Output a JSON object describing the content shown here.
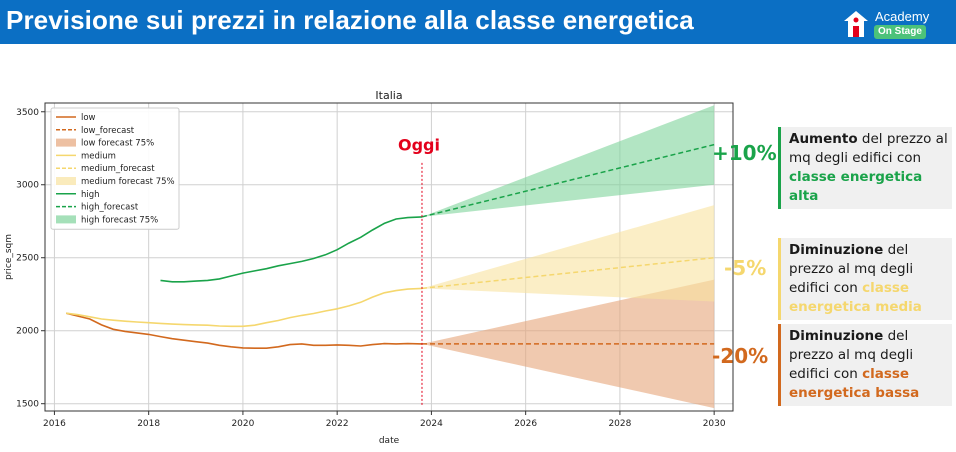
{
  "header": {
    "title": "Previsione sui prezzi in relazione alla classe energetica",
    "brand_name": "Academy",
    "brand_badge": "On Stage",
    "brand_color": "#0b6fc4"
  },
  "chart_data": {
    "type": "line",
    "title": "Italia",
    "xlabel": "date",
    "ylabel": "price_sqm",
    "xlim": [
      2015.8,
      2030.4
    ],
    "ylim": [
      1450,
      3560
    ],
    "x_ticks": [
      2016,
      2018,
      2020,
      2022,
      2024,
      2026,
      2028,
      2030
    ],
    "y_ticks": [
      1500,
      2000,
      2500,
      3000,
      3500
    ],
    "grid": true,
    "legend_position": "top-left",
    "annotation": {
      "text": "Oggi",
      "x": 2023.8,
      "color": "#e3001b"
    },
    "series": [
      {
        "name": "low",
        "color": "#d2691e",
        "x": [
          2016.25,
          2016.5,
          2016.75,
          2017.0,
          2017.25,
          2017.5,
          2017.75,
          2018.0,
          2018.25,
          2018.5,
          2018.75,
          2019.0,
          2019.25,
          2019.5,
          2019.75,
          2020.0,
          2020.25,
          2020.5,
          2020.75,
          2021.0,
          2021.25,
          2021.5,
          2021.75,
          2022.0,
          2022.25,
          2022.5,
          2022.75,
          2023.0,
          2023.25,
          2023.5,
          2023.8
        ],
        "y": [
          2120,
          2100,
          2080,
          2040,
          2010,
          1995,
          1985,
          1975,
          1960,
          1945,
          1935,
          1925,
          1915,
          1900,
          1890,
          1882,
          1880,
          1880,
          1890,
          1905,
          1910,
          1900,
          1900,
          1903,
          1900,
          1895,
          1905,
          1912,
          1910,
          1912,
          1910
        ]
      },
      {
        "name": "medium",
        "color": "#f5d76e",
        "x": [
          2016.25,
          2016.5,
          2016.75,
          2017.0,
          2017.25,
          2017.5,
          2017.75,
          2018.0,
          2018.25,
          2018.5,
          2018.75,
          2019.0,
          2019.25,
          2019.5,
          2019.75,
          2020.0,
          2020.25,
          2020.5,
          2020.75,
          2021.0,
          2021.25,
          2021.5,
          2021.75,
          2022.0,
          2022.25,
          2022.5,
          2022.75,
          2023.0,
          2023.25,
          2023.5,
          2023.8
        ],
        "y": [
          2120,
          2110,
          2095,
          2080,
          2072,
          2065,
          2060,
          2055,
          2050,
          2045,
          2042,
          2040,
          2038,
          2032,
          2030,
          2030,
          2038,
          2055,
          2070,
          2090,
          2105,
          2118,
          2135,
          2150,
          2170,
          2195,
          2230,
          2260,
          2275,
          2285,
          2290
        ]
      },
      {
        "name": "high",
        "color": "#1aa34a",
        "x": [
          2018.25,
          2018.5,
          2018.75,
          2019.0,
          2019.25,
          2019.5,
          2019.75,
          2020.0,
          2020.25,
          2020.5,
          2020.75,
          2021.0,
          2021.25,
          2021.5,
          2021.75,
          2022.0,
          2022.25,
          2022.5,
          2022.75,
          2023.0,
          2023.25,
          2023.5,
          2023.8
        ],
        "y": [
          2345,
          2335,
          2335,
          2340,
          2345,
          2355,
          2375,
          2395,
          2410,
          2425,
          2445,
          2460,
          2475,
          2495,
          2520,
          2555,
          2600,
          2640,
          2690,
          2735,
          2765,
          2775,
          2780
        ]
      }
    ],
    "forecasts": [
      {
        "name": "low_forecast",
        "band_name": "low forecast 75%",
        "color": "#d2691e",
        "band_color": "#e6a57a",
        "x": [
          2023.8,
          2030.0
        ],
        "y": [
          1910,
          1910
        ],
        "band_start": [
          1910,
          1910
        ],
        "band_end": [
          1470,
          2350
        ]
      },
      {
        "name": "medium_forecast",
        "band_name": "medium forecast 75%",
        "color": "#f5d76e",
        "band_color": "#f8e3a0",
        "x": [
          2023.8,
          2030.0
        ],
        "y": [
          2290,
          2500
        ],
        "band_start": [
          2290,
          2290
        ],
        "band_end": [
          2200,
          2860
        ]
      },
      {
        "name": "high_forecast",
        "band_name": "high forecast 75%",
        "color": "#1aa34a",
        "band_color": "#7fd39b",
        "x": [
          2023.8,
          2030.0
        ],
        "y": [
          2780,
          3275
        ],
        "band_start": [
          2780,
          2780
        ],
        "band_end": [
          3000,
          3545
        ]
      }
    ],
    "legend": [
      "low",
      "low_forecast",
      "low forecast 75%",
      "medium",
      "medium_forecast",
      "medium forecast 75%",
      "high",
      "high_forecast",
      "high forecast 75%"
    ]
  },
  "callouts": [
    {
      "delta": "+10%",
      "color": "#1aa34a",
      "bold": "Aumento",
      "text": " del prezzo al mq degli edifici con ",
      "class_label": "classe energetica alta"
    },
    {
      "delta": "-5%",
      "color": "#f5d76e",
      "bold": "Diminuzione",
      "text": " del prezzo al mq degli edifici con ",
      "class_label": "classe energetica media"
    },
    {
      "delta": "-20%",
      "color": "#d2691e",
      "bold": "Diminuzione",
      "text": " del prezzo al mq degli edifici con ",
      "class_label": "classe energetica bassa"
    }
  ]
}
